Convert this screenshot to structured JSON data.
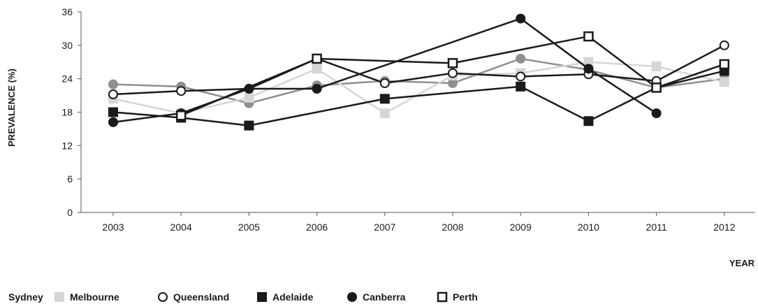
{
  "chart_data": {
    "type": "line",
    "ylabel": "PREVALENCE (%)",
    "xlabel": "YEAR",
    "ylim": [
      0,
      36
    ],
    "yticks": [
      0,
      6,
      12,
      18,
      24,
      30,
      36
    ],
    "categories": [
      "2003",
      "2004",
      "2005",
      "2006",
      "2007",
      "2008",
      "2009",
      "2010",
      "2011",
      "2012"
    ],
    "grid": false,
    "legend_position": "bottom",
    "series": [
      {
        "name": "Sydney",
        "color": "#8f8f8f",
        "marker": "circle-filled",
        "values": [
          23,
          22.6,
          19.6,
          22.8,
          23.6,
          23.2,
          27.6,
          25.6,
          22.4,
          24
        ]
      },
      {
        "name": "Melbourne",
        "color": "#d6d6d6",
        "marker": "square-filled",
        "values": [
          20.4,
          17.8,
          20.6,
          25.8,
          17.8,
          24.6,
          25,
          27,
          26.2,
          23.4
        ]
      },
      {
        "name": "Queensland",
        "color": "#1a1a1a",
        "marker": "circle-open",
        "values": [
          21.2,
          21.8,
          22.2,
          27.6,
          23.2,
          25,
          24.4,
          24.8,
          23.6,
          30
        ]
      },
      {
        "name": "Adelaide",
        "color": "#1a1a1a",
        "marker": "square-filled",
        "values": [
          18,
          17,
          15.6,
          null,
          20.4,
          null,
          22.6,
          16.4,
          22.4,
          25.4
        ]
      },
      {
        "name": "Canberra",
        "color": "#1a1a1a",
        "marker": "circle-filled",
        "values": [
          16.2,
          17.8,
          22.2,
          22.2,
          null,
          null,
          34.8,
          25.8,
          17.8,
          null
        ]
      },
      {
        "name": "Perth",
        "color": "#1a1a1a",
        "marker": "square-open",
        "values": [
          null,
          17.4,
          null,
          27.6,
          null,
          26.8,
          null,
          31.6,
          22.4,
          26.6
        ]
      }
    ]
  }
}
